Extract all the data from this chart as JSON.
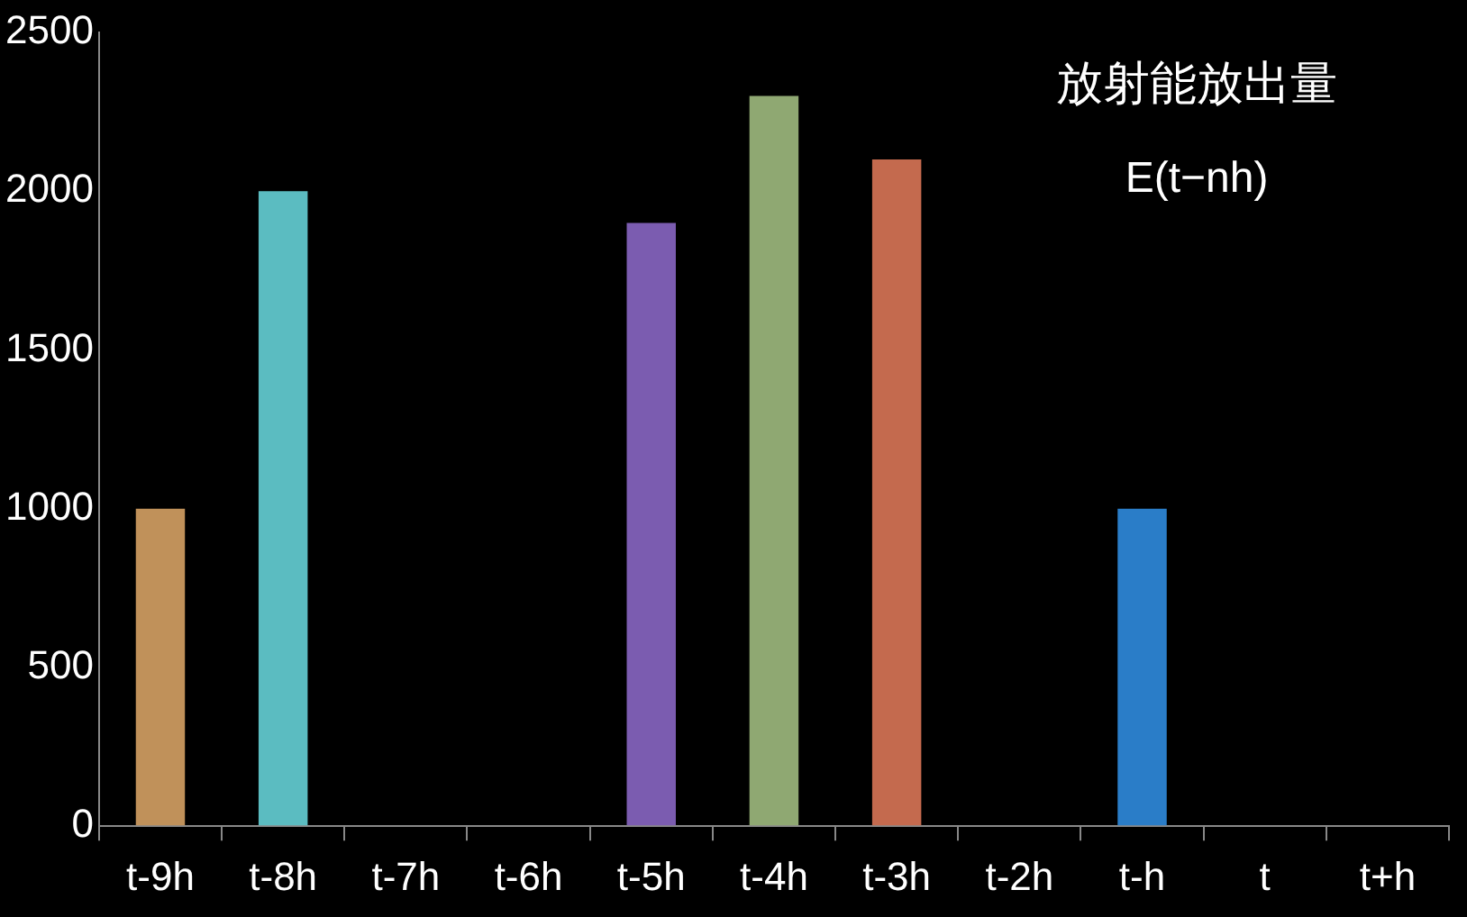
{
  "chart_data": {
    "type": "bar",
    "title": "放射能放出量",
    "subtitle": "E(t−nh)",
    "categories": [
      "t-9h",
      "t-8h",
      "t-7h",
      "t-6h",
      "t-5h",
      "t-4h",
      "t-3h",
      "t-2h",
      "t-h",
      "t",
      "t+h"
    ],
    "values": [
      1000,
      2000,
      null,
      null,
      1900,
      2300,
      2100,
      null,
      1000,
      null,
      null
    ],
    "colors": [
      "#c0915a",
      "#5bbcc1",
      "#888888",
      "#888888",
      "#7b5cb0",
      "#8fa872",
      "#c46a4e",
      "#888888",
      "#2a7dc8",
      "#888888",
      "#888888"
    ],
    "ylim": [
      0,
      2500
    ],
    "yticks": [
      0,
      500,
      1000,
      1500,
      2000,
      2500
    ],
    "grid": false,
    "legend": false
  }
}
